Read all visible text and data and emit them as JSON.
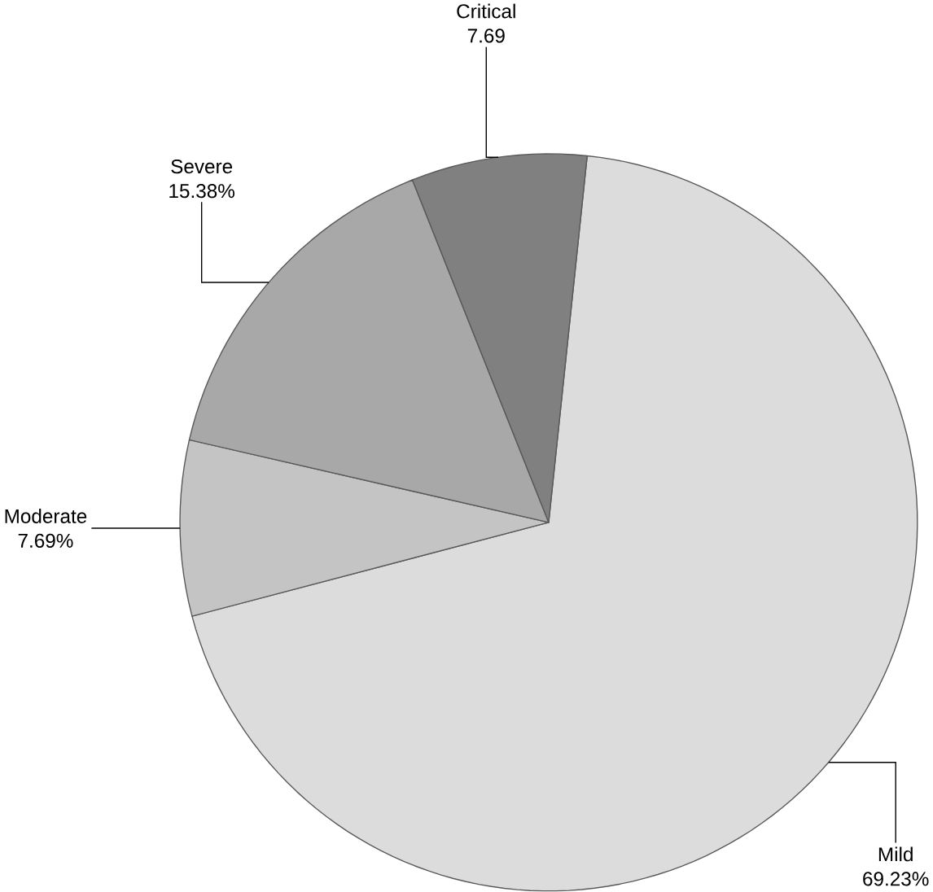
{
  "chart_data": {
    "type": "pie",
    "categories": [
      "Mild",
      "Moderate",
      "Severe",
      "Critical"
    ],
    "values": [
      69.23,
      7.69,
      15.38,
      7.69
    ],
    "colors": [
      "#dcdcdc",
      "#c4c4c4",
      "#a8a8a8",
      "#808080"
    ],
    "value_labels": [
      "69.23%",
      "7.69%",
      "15.38%",
      "7.69"
    ]
  }
}
